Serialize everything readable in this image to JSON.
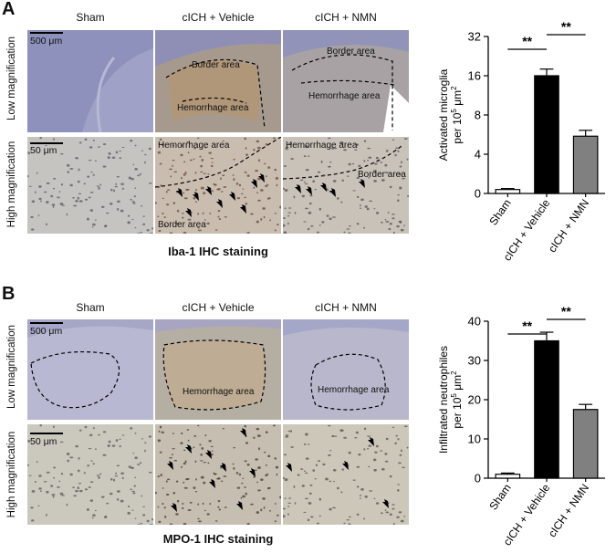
{
  "panels": [
    {
      "letter": "A",
      "columns": [
        "Sham",
        "cICH + Vehicle",
        "cICH + NMN"
      ],
      "rows": [
        "Low magnification",
        "High magnification"
      ],
      "scale_bars": [
        "500 μm",
        "50 μm"
      ],
      "region_labels": {
        "low_vehicle": [
          "Border area",
          "Hemorrhage area"
        ],
        "low_nmn": [
          "Border area",
          "Hemorrhage area"
        ],
        "high_vehicle": [
          "Hemorrhage area",
          "Border area"
        ],
        "high_nmn": [
          "Hemorrhage area",
          "Border area"
        ]
      },
      "caption": "Iba-1 IHC staining",
      "colors": {
        "low_bg": "#9a9ec4",
        "high_bg": "#c9c6bf",
        "stain": "#b06a40"
      }
    },
    {
      "letter": "B",
      "columns": [
        "Sham",
        "cICH + Vehicle",
        "cICH + NMN"
      ],
      "rows": [
        "Low magnification",
        "High magnification"
      ],
      "scale_bars": [
        "500 μm",
        "50 μm"
      ],
      "region_labels": {
        "low_vehicle": [
          "Hemorrhage area"
        ],
        "low_nmn": [
          "Hemorrhage area"
        ]
      },
      "caption": "MPO-1 IHC staining",
      "colors": {
        "low_bg": "#b9b8d0",
        "high_bg": "#ccc6b9",
        "stain": "#8a6a45"
      }
    }
  ],
  "chart_data": [
    {
      "type": "bar",
      "categories": [
        "Sham",
        "cICH + Vehicle",
        "cICH + NMN"
      ],
      "values": [
        0.4,
        16,
        5.5
      ],
      "errors": [
        0.1,
        2.0,
        0.6
      ],
      "ylabel_line1": "Activated microglia",
      "ylabel_line2": "per 10",
      "ylabel_sup": "5",
      "ylabel_unit": " μm",
      "ylabel_sup2": "2",
      "yscale": "log2",
      "ylim": [
        0,
        32
      ],
      "yticks": [
        0,
        4,
        8,
        16,
        32
      ],
      "significance": [
        {
          "from": 0,
          "to": 1,
          "label": "**"
        },
        {
          "from": 1,
          "to": 2,
          "label": "**"
        }
      ],
      "colors": [
        "#ffffff",
        "#000000",
        "#808080"
      ]
    },
    {
      "type": "bar",
      "categories": [
        "Sham",
        "cICH + Vehicle",
        "cICH + NMN"
      ],
      "values": [
        1,
        35,
        17.5
      ],
      "errors": [
        0.3,
        2.2,
        1.3
      ],
      "ylabel_line1": "Infiltrated neutrophiles",
      "ylabel_line2": "per 10",
      "ylabel_sup": "5",
      "ylabel_unit": " μm",
      "ylabel_sup2": "2",
      "yscale": "linear",
      "ylim": [
        0,
        40
      ],
      "yticks": [
        0,
        10,
        20,
        30,
        40
      ],
      "significance": [
        {
          "from": 0,
          "to": 1,
          "label": "**"
        },
        {
          "from": 1,
          "to": 2,
          "label": "**"
        }
      ],
      "colors": [
        "#ffffff",
        "#000000",
        "#808080"
      ]
    }
  ]
}
